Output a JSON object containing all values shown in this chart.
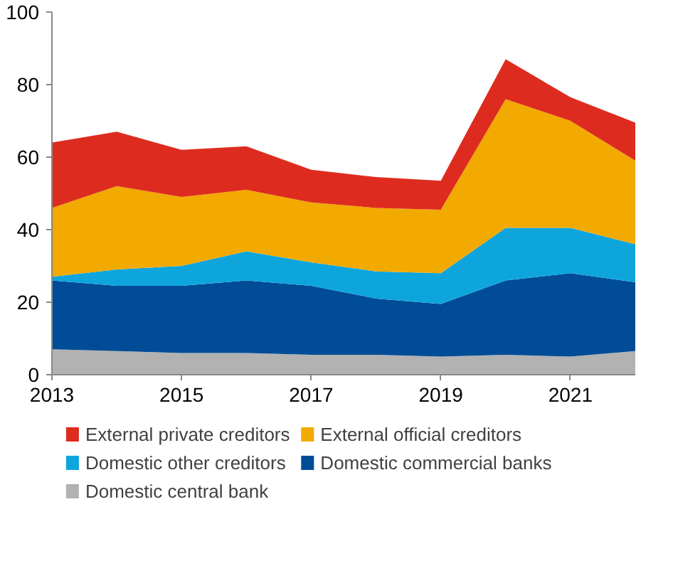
{
  "chart_data": {
    "type": "area",
    "stacked": true,
    "x": [
      2013,
      2014,
      2015,
      2016,
      2017,
      2018,
      2019,
      2020,
      2021,
      2022
    ],
    "xlim": [
      2013,
      2022
    ],
    "xticks": [
      2013,
      2015,
      2017,
      2019,
      2021
    ],
    "ylim": [
      0,
      100
    ],
    "yticks": [
      0,
      20,
      40,
      60,
      80,
      100
    ],
    "grid": false,
    "legend": "bottom",
    "series": [
      {
        "name": "Domestic central bank",
        "color": "#b2b2b2",
        "values": [
          7,
          6.5,
          6,
          6,
          5.5,
          5.5,
          5,
          5.5,
          5,
          6.5
        ]
      },
      {
        "name": "Domestic commercial banks",
        "color": "#004c97",
        "values": [
          19,
          18,
          18.5,
          20,
          19,
          15.5,
          14.5,
          20.5,
          23,
          19
        ]
      },
      {
        "name": "Domestic other creditors",
        "color": "#0ea5dd",
        "values": [
          1,
          4.5,
          5.5,
          8,
          6.5,
          7.5,
          8.5,
          14.5,
          12.5,
          10.5
        ]
      },
      {
        "name": "External official creditors",
        "color": "#f2a900",
        "values": [
          19,
          23,
          19,
          17,
          16.5,
          17.5,
          17.5,
          35.5,
          29.5,
          23
        ]
      },
      {
        "name": "External private creditors",
        "color": "#dd2c1f",
        "values": [
          18,
          15,
          13,
          12,
          9,
          8.5,
          8,
          11,
          6.5,
          10.5
        ]
      }
    ]
  }
}
